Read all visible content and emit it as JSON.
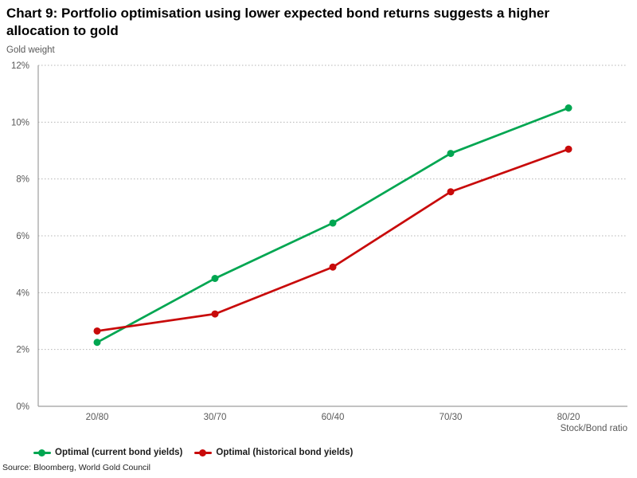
{
  "header": {
    "title_line1": "Chart 9: Portfolio optimisation using lower expected bond returns suggests a higher",
    "title_line2": "allocation to gold"
  },
  "axes": {
    "y_title": "Gold weight",
    "x_title": "Stock/Bond ratio"
  },
  "legend": {
    "items": [
      {
        "label": "Optimal (current bond yields)",
        "color": "#00A651"
      },
      {
        "label": "Optimal (historical bond yields)",
        "color": "#C80A0A"
      }
    ]
  },
  "source": "Source: Bloomberg, World Gold Council",
  "chart_data": {
    "type": "line",
    "title": "Chart 9: Portfolio optimisation using lower expected bond returns suggests a higher allocation to gold",
    "xlabel": "Stock/Bond ratio",
    "ylabel": "Gold weight",
    "categories": [
      "20/80",
      "30/70",
      "60/40",
      "70/30",
      "80/20"
    ],
    "series": [
      {
        "name": "Optimal (current bond yields)",
        "color": "#00A651",
        "values": [
          2.25,
          4.5,
          6.45,
          8.9,
          10.5
        ]
      },
      {
        "name": "Optimal (historical bond yields)",
        "color": "#C80A0A",
        "values": [
          2.65,
          3.25,
          4.9,
          7.55,
          9.05
        ]
      }
    ],
    "ylim": [
      0,
      12
    ],
    "yticks": [
      {
        "value": 0,
        "label": "0%"
      },
      {
        "value": 2,
        "label": "2%"
      },
      {
        "value": 4,
        "label": "4%"
      },
      {
        "value": 6,
        "label": "6%"
      },
      {
        "value": 8,
        "label": "8%"
      },
      {
        "value": 10,
        "label": "10%"
      },
      {
        "value": 12,
        "label": "12%"
      }
    ],
    "grid": "horizontal-dotted",
    "legend_position": "bottom-left",
    "marker": "circle",
    "source": "Source: Bloomberg, World Gold Council"
  }
}
